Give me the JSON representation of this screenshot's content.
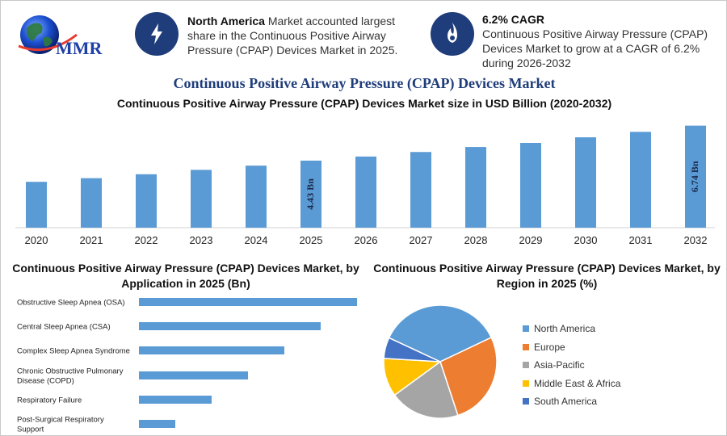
{
  "header": {
    "logo_text": "MMR",
    "info1": {
      "icon": "bolt-icon",
      "bold": "North America",
      "text": " Market accounted largest share in the Continuous Positive Airway Pressure (CPAP) Devices Market in 2025."
    },
    "info2": {
      "icon": "flame-icon",
      "title": "6.2% CAGR",
      "text": "Continuous Positive Airway Pressure (CPAP) Devices Market to grow at a CAGR of 6.2% during 2026-2032"
    }
  },
  "main_title": "Continuous Positive Airway Pressure (CPAP) Devices Market",
  "colors": {
    "bar": "#5b9bd5",
    "title": "#1f3d7a",
    "pie": [
      "#5b9bd5",
      "#ed7d31",
      "#a5a5a5",
      "#ffc000",
      "#4472c4"
    ]
  },
  "chart_data": [
    {
      "type": "bar",
      "title": "Continuous Positive Airway Pressure (CPAP) Devices Market size in USD Billion (2020-2032)",
      "categories": [
        "2020",
        "2021",
        "2022",
        "2023",
        "2024",
        "2025",
        "2026",
        "2027",
        "2028",
        "2029",
        "2030",
        "2031",
        "2032"
      ],
      "values": [
        3.03,
        3.27,
        3.53,
        3.82,
        4.1,
        4.43,
        4.7,
        5.0,
        5.33,
        5.6,
        5.97,
        6.33,
        6.74
      ],
      "data_labels": {
        "2025": "4.43 Bn",
        "2032": "6.74 Bn"
      },
      "ylim": [
        0,
        7.2
      ],
      "grid": false
    },
    {
      "type": "bar",
      "orientation": "horizontal",
      "title": "Continuous Positive Airway Pressure (CPAP) Devices Market, by Application in 2025 (Bn)",
      "categories": [
        "Obstructive Sleep Apnea (OSA)",
        "Central Sleep Apnea (CSA)",
        "Complex Sleep Apnea Syndrome",
        "Chronic Obstructive Pulmonary Disease (COPD)",
        "Respiratory Failure",
        "Post-Surgical Respiratory Support"
      ],
      "values": [
        1.2,
        1.0,
        0.8,
        0.6,
        0.4,
        0.2
      ],
      "grid": false
    },
    {
      "type": "pie",
      "title": "Continuous Positive Airway Pressure (CPAP) Devices Market, by Region in 2025 (%)",
      "categories": [
        "North America",
        "Europe",
        "Asia-Pacific",
        "Middle East & Africa",
        "South America"
      ],
      "values": [
        36,
        27,
        20,
        11,
        6
      ],
      "legend": "right"
    }
  ]
}
